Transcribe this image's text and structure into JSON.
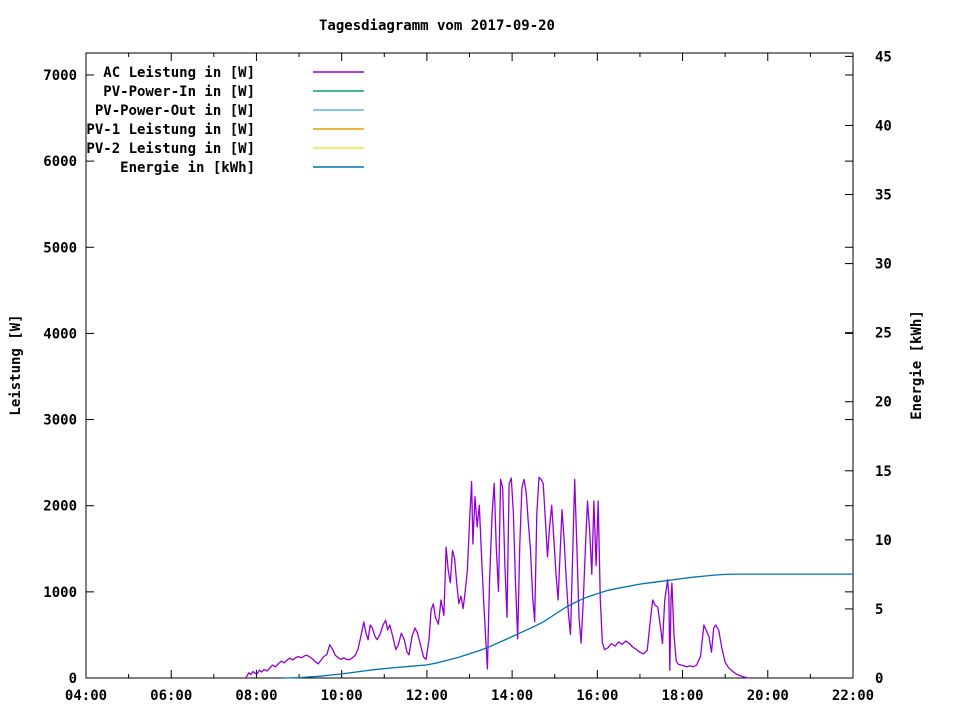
{
  "title": "Tagesdiagramm vom 2017-09-20",
  "axes": {
    "y_left_label": "Leistung [W]",
    "y_right_label": "Energie [kWh]"
  },
  "chart_data": {
    "type": "line",
    "title": "Tagesdiagramm vom 2017-09-20",
    "grid": false,
    "legend_position": "top-left-inside",
    "x_axis": {
      "unit": "time-of-day",
      "range_hours": [
        4,
        22
      ],
      "major_ticks": [
        4,
        6,
        8,
        10,
        12,
        14,
        16,
        18,
        20,
        22
      ],
      "major_tick_labels": [
        "04:00",
        "06:00",
        "08:00",
        "10:00",
        "12:00",
        "14:00",
        "16:00",
        "18:00",
        "20:00",
        "22:00"
      ],
      "minor_ticks": [
        5,
        7,
        9,
        11,
        13,
        15,
        17,
        19,
        21
      ]
    },
    "y_left_axis": {
      "label": "Leistung [W]",
      "ticks": [
        0,
        1000,
        2000,
        3000,
        4000,
        5000,
        6000,
        7000
      ],
      "range": [
        0,
        7255
      ]
    },
    "y_right_axis": {
      "label": "Energie [kWh]",
      "ticks": [
        0,
        5,
        10,
        15,
        20,
        25,
        30,
        35,
        40,
        45
      ],
      "range": [
        0,
        45.1
      ]
    },
    "legend": [
      {
        "label": "AC Leistung in [W]",
        "color": "#9400d3"
      },
      {
        "label": "PV-Power-In in [W]",
        "color": "#009e73"
      },
      {
        "label": "PV-Power-Out in [W]",
        "color": "#56b4e9"
      },
      {
        "label": "PV-1 Leistung in [W]",
        "color": "#e69f00"
      },
      {
        "label": "PV-2 Leistung in [W]",
        "color": "#f0e442"
      },
      {
        "label": "Energie in [kWh]",
        "color": "#0072b2"
      }
    ],
    "series": [
      {
        "name": "AC Leistung in [W]",
        "color": "#9400d3",
        "axis": "left",
        "visible_in_plot": true,
        "points": [
          [
            7.75,
            0
          ],
          [
            7.78,
            25
          ],
          [
            7.82,
            60
          ],
          [
            7.87,
            40
          ],
          [
            7.92,
            75
          ],
          [
            7.97,
            55
          ],
          [
            8.02,
            50
          ],
          [
            8.07,
            90
          ],
          [
            8.12,
            70
          ],
          [
            8.18,
            100
          ],
          [
            8.25,
            80
          ],
          [
            8.32,
            120
          ],
          [
            8.38,
            150
          ],
          [
            8.45,
            130
          ],
          [
            8.52,
            170
          ],
          [
            8.58,
            195
          ],
          [
            8.65,
            175
          ],
          [
            8.72,
            210
          ],
          [
            8.78,
            230
          ],
          [
            8.85,
            210
          ],
          [
            8.92,
            235
          ],
          [
            8.98,
            250
          ],
          [
            9.05,
            235
          ],
          [
            9.12,
            255
          ],
          [
            9.18,
            265
          ],
          [
            9.25,
            245
          ],
          [
            9.32,
            220
          ],
          [
            9.38,
            190
          ],
          [
            9.45,
            165
          ],
          [
            9.52,
            210
          ],
          [
            9.58,
            250
          ],
          [
            9.65,
            270
          ],
          [
            9.72,
            385
          ],
          [
            9.78,
            340
          ],
          [
            9.85,
            265
          ],
          [
            9.92,
            235
          ],
          [
            9.98,
            215
          ],
          [
            10.05,
            235
          ],
          [
            10.12,
            215
          ],
          [
            10.18,
            212
          ],
          [
            10.25,
            235
          ],
          [
            10.32,
            265
          ],
          [
            10.38,
            330
          ],
          [
            10.45,
            480
          ],
          [
            10.52,
            650
          ],
          [
            10.57,
            520
          ],
          [
            10.62,
            445
          ],
          [
            10.67,
            615
          ],
          [
            10.72,
            580
          ],
          [
            10.78,
            485
          ],
          [
            10.83,
            445
          ],
          [
            10.9,
            505
          ],
          [
            10.97,
            615
          ],
          [
            11.03,
            670
          ],
          [
            11.08,
            560
          ],
          [
            11.13,
            615
          ],
          [
            11.2,
            480
          ],
          [
            11.27,
            330
          ],
          [
            11.33,
            385
          ],
          [
            11.4,
            520
          ],
          [
            11.47,
            445
          ],
          [
            11.53,
            305
          ],
          [
            11.58,
            268
          ],
          [
            11.65,
            480
          ],
          [
            11.72,
            580
          ],
          [
            11.78,
            520
          ],
          [
            11.85,
            385
          ],
          [
            11.92,
            245
          ],
          [
            11.98,
            215
          ],
          [
            12.05,
            445
          ],
          [
            12.1,
            790
          ],
          [
            12.15,
            860
          ],
          [
            12.2,
            705
          ],
          [
            12.27,
            625
          ],
          [
            12.33,
            905
          ],
          [
            12.4,
            725
          ],
          [
            12.45,
            1520
          ],
          [
            12.5,
            1255
          ],
          [
            12.55,
            1105
          ],
          [
            12.6,
            1480
          ],
          [
            12.65,
            1385
          ],
          [
            12.7,
            1105
          ],
          [
            12.75,
            865
          ],
          [
            12.8,
            950
          ],
          [
            12.85,
            805
          ],
          [
            12.9,
            1005
          ],
          [
            12.95,
            1255
          ],
          [
            13.0,
            1805
          ],
          [
            13.05,
            2280
          ],
          [
            13.08,
            1555
          ],
          [
            13.13,
            2105
          ],
          [
            13.18,
            1755
          ],
          [
            13.23,
            2005
          ],
          [
            13.28,
            1455
          ],
          [
            13.33,
            905
          ],
          [
            13.38,
            455
          ],
          [
            13.42,
            105
          ],
          [
            13.47,
            1105
          ],
          [
            13.53,
            1905
          ],
          [
            13.58,
            2260
          ],
          [
            13.63,
            1505
          ],
          [
            13.68,
            1005
          ],
          [
            13.73,
            2305
          ],
          [
            13.78,
            2205
          ],
          [
            13.83,
            1305
          ],
          [
            13.88,
            705
          ],
          [
            13.93,
            2255
          ],
          [
            13.98,
            2320
          ],
          [
            14.03,
            1905
          ],
          [
            14.08,
            1105
          ],
          [
            14.13,
            455
          ],
          [
            14.18,
            1555
          ],
          [
            14.23,
            2205
          ],
          [
            14.28,
            2305
          ],
          [
            14.33,
            2155
          ],
          [
            14.38,
            1805
          ],
          [
            14.43,
            1505
          ],
          [
            14.48,
            955
          ],
          [
            14.53,
            655
          ],
          [
            14.58,
            1905
          ],
          [
            14.63,
            2330
          ],
          [
            14.68,
            2305
          ],
          [
            14.73,
            2255
          ],
          [
            14.78,
            1855
          ],
          [
            14.83,
            1405
          ],
          [
            14.88,
            1755
          ],
          [
            14.93,
            2005
          ],
          [
            14.98,
            1605
          ],
          [
            15.03,
            1205
          ],
          [
            15.08,
            905
          ],
          [
            15.13,
            1505
          ],
          [
            15.17,
            1955
          ],
          [
            15.22,
            1605
          ],
          [
            15.27,
            1155
          ],
          [
            15.32,
            755
          ],
          [
            15.37,
            505
          ],
          [
            15.42,
            1405
          ],
          [
            15.47,
            2305
          ],
          [
            15.52,
            1505
          ],
          [
            15.57,
            705
          ],
          [
            15.62,
            405
          ],
          [
            15.67,
            905
          ],
          [
            15.72,
            1505
          ],
          [
            15.77,
            2055
          ],
          [
            15.82,
            1705
          ],
          [
            15.87,
            1205
          ],
          [
            15.92,
            2055
          ],
          [
            15.97,
            1305
          ],
          [
            16.02,
            2055
          ],
          [
            16.07,
            905
          ],
          [
            16.12,
            405
          ],
          [
            16.17,
            330
          ],
          [
            16.25,
            350
          ],
          [
            16.33,
            400
          ],
          [
            16.42,
            370
          ],
          [
            16.5,
            420
          ],
          [
            16.58,
            390
          ],
          [
            16.67,
            430
          ],
          [
            16.75,
            400
          ],
          [
            16.83,
            360
          ],
          [
            16.92,
            330
          ],
          [
            17.0,
            300
          ],
          [
            17.08,
            280
          ],
          [
            17.17,
            320
          ],
          [
            17.25,
            700
          ],
          [
            17.3,
            905
          ],
          [
            17.35,
            850
          ],
          [
            17.42,
            820
          ],
          [
            17.48,
            600
          ],
          [
            17.53,
            400
          ],
          [
            17.58,
            900
          ],
          [
            17.65,
            1140
          ],
          [
            17.68,
            950
          ],
          [
            17.7,
            90
          ],
          [
            17.73,
            950
          ],
          [
            17.75,
            1100
          ],
          [
            17.8,
            500
          ],
          [
            17.85,
            200
          ],
          [
            17.9,
            160
          ],
          [
            17.97,
            150
          ],
          [
            18.03,
            140
          ],
          [
            18.1,
            130
          ],
          [
            18.17,
            140
          ],
          [
            18.25,
            130
          ],
          [
            18.33,
            150
          ],
          [
            18.42,
            250
          ],
          [
            18.5,
            615
          ],
          [
            18.55,
            560
          ],
          [
            18.62,
            480
          ],
          [
            18.68,
            300
          ],
          [
            18.73,
            580
          ],
          [
            18.78,
            615
          ],
          [
            18.85,
            550
          ],
          [
            18.92,
            350
          ],
          [
            19.0,
            180
          ],
          [
            19.08,
            120
          ],
          [
            19.17,
            80
          ],
          [
            19.25,
            50
          ],
          [
            19.33,
            30
          ],
          [
            19.42,
            15
          ],
          [
            19.5,
            5
          ],
          [
            19.58,
            0
          ]
        ]
      },
      {
        "name": "PV-Power-In in [W]",
        "color": "#009e73",
        "axis": "left",
        "visible_in_plot": false,
        "points": []
      },
      {
        "name": "PV-Power-Out in [W]",
        "color": "#56b4e9",
        "axis": "left",
        "visible_in_plot": false,
        "points": []
      },
      {
        "name": "PV-1 Leistung in [W]",
        "color": "#e69f00",
        "axis": "left",
        "visible_in_plot": false,
        "points": []
      },
      {
        "name": "PV-2 Leistung in [W]",
        "color": "#f0e442",
        "axis": "left",
        "visible_in_plot": false,
        "points": []
      },
      {
        "name": "Energie in [kWh]",
        "color": "#0072b2",
        "axis": "right",
        "visible_in_plot": true,
        "points": [
          [
            8.63,
            0
          ],
          [
            8.8,
            0.01
          ],
          [
            9.0,
            0.03
          ],
          [
            9.25,
            0.08
          ],
          [
            9.5,
            0.13
          ],
          [
            9.75,
            0.22
          ],
          [
            10.0,
            0.3
          ],
          [
            10.25,
            0.4
          ],
          [
            10.5,
            0.5
          ],
          [
            10.75,
            0.6
          ],
          [
            11.0,
            0.67
          ],
          [
            11.25,
            0.75
          ],
          [
            11.5,
            0.82
          ],
          [
            11.75,
            0.88
          ],
          [
            12.0,
            0.95
          ],
          [
            12.25,
            1.1
          ],
          [
            12.5,
            1.3
          ],
          [
            12.75,
            1.5
          ],
          [
            13.0,
            1.75
          ],
          [
            13.25,
            2.0
          ],
          [
            13.5,
            2.3
          ],
          [
            13.75,
            2.65
          ],
          [
            14.0,
            3.0
          ],
          [
            14.25,
            3.35
          ],
          [
            14.5,
            3.7
          ],
          [
            14.75,
            4.1
          ],
          [
            15.0,
            4.6
          ],
          [
            15.25,
            5.1
          ],
          [
            15.5,
            5.5
          ],
          [
            15.75,
            5.85
          ],
          [
            16.0,
            6.1
          ],
          [
            16.25,
            6.35
          ],
          [
            16.5,
            6.5
          ],
          [
            16.75,
            6.65
          ],
          [
            17.0,
            6.8
          ],
          [
            17.25,
            6.9
          ],
          [
            17.5,
            7.0
          ],
          [
            17.75,
            7.1
          ],
          [
            18.0,
            7.2
          ],
          [
            18.25,
            7.3
          ],
          [
            18.5,
            7.38
          ],
          [
            18.75,
            7.45
          ],
          [
            19.0,
            7.5
          ],
          [
            19.25,
            7.52
          ],
          [
            19.5,
            7.52
          ],
          [
            20.0,
            7.52
          ],
          [
            21.0,
            7.52
          ],
          [
            22.0,
            7.52
          ]
        ]
      }
    ]
  }
}
